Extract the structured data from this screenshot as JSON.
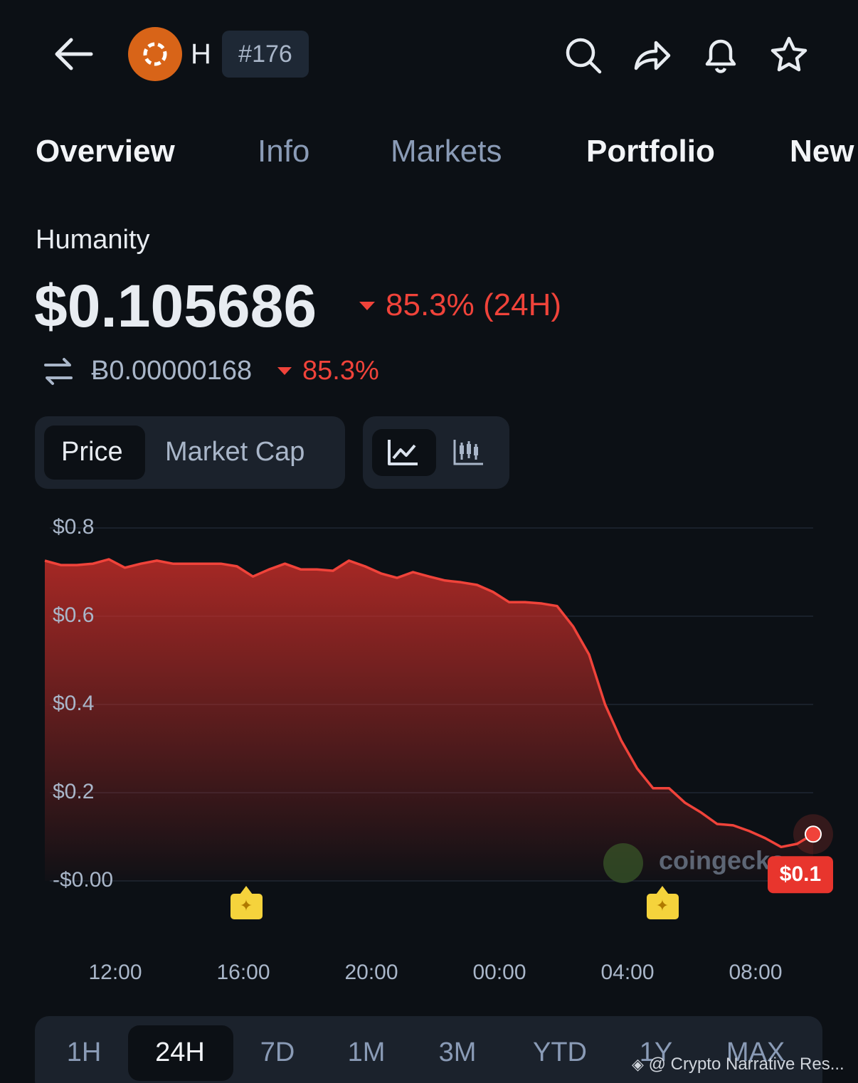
{
  "header": {
    "symbol": "H",
    "rank": "#176"
  },
  "tabs": [
    "Overview",
    "Info",
    "Markets",
    "Portfolio",
    "New"
  ],
  "coin": {
    "name": "Humanity",
    "price": "$0.105686",
    "change": "85.3% (24H)",
    "btc_price": "Ƀ0.00000168",
    "btc_change": "85.3%"
  },
  "toggles": [
    "Price",
    "Market Cap"
  ],
  "chart_data": {
    "type": "area",
    "color": "#f0433a",
    "x": [
      9.8,
      10.3,
      10.8,
      11.3,
      11.8,
      12.3,
      12.8,
      13.3,
      13.8,
      14.3,
      14.8,
      15.3,
      15.8,
      16.3,
      16.8,
      17.3,
      17.8,
      18.3,
      18.8,
      19.3,
      19.8,
      20.3,
      20.8,
      21.3,
      21.8,
      22.3,
      22.8,
      23.3,
      23.8,
      24.3,
      24.8,
      25.3,
      25.8,
      26.3,
      26.8,
      27.3,
      27.8,
      28.3,
      28.8,
      29.3,
      29.8,
      30.3,
      30.8,
      31.3,
      31.8,
      32.3,
      32.8,
      33.3,
      33.8
    ],
    "values": [
      0.726,
      0.716,
      0.716,
      0.719,
      0.729,
      0.71,
      0.719,
      0.726,
      0.719,
      0.719,
      0.719,
      0.719,
      0.713,
      0.69,
      0.706,
      0.719,
      0.706,
      0.706,
      0.703,
      0.726,
      0.713,
      0.697,
      0.687,
      0.7,
      0.69,
      0.681,
      0.677,
      0.671,
      0.655,
      0.632,
      0.632,
      0.629,
      0.623,
      0.577,
      0.513,
      0.4,
      0.319,
      0.255,
      0.21,
      0.21,
      0.177,
      0.155,
      0.129,
      0.126,
      0.113,
      0.097,
      0.077,
      0.084,
      0.106
    ],
    "xlim": [
      9.8,
      33.8
    ],
    "xticks": [
      {
        "value": 12,
        "label": "12:00"
      },
      {
        "value": 16,
        "label": "16:00"
      },
      {
        "value": 20,
        "label": "20:00"
      },
      {
        "value": 24,
        "label": "00:00"
      },
      {
        "value": 28,
        "label": "04:00"
      },
      {
        "value": 32,
        "label": "08:00"
      }
    ],
    "ylim": [
      0,
      0.8
    ],
    "yticks": [
      {
        "value": 0.8,
        "label": "$0.8"
      },
      {
        "value": 0.6,
        "label": "$0.6"
      },
      {
        "value": 0.4,
        "label": "$0.4"
      },
      {
        "value": 0.2,
        "label": "$0.2"
      },
      {
        "value": 0,
        "label": "-$0.00"
      }
    ],
    "grid": true,
    "current_label": "$0.1",
    "watermark": "coingecko"
  },
  "ranges": [
    "1H",
    "24H",
    "7D",
    "1M",
    "3M",
    "YTD",
    "1Y",
    "MAX"
  ],
  "credit": "@ Crypto Narrative Res..."
}
